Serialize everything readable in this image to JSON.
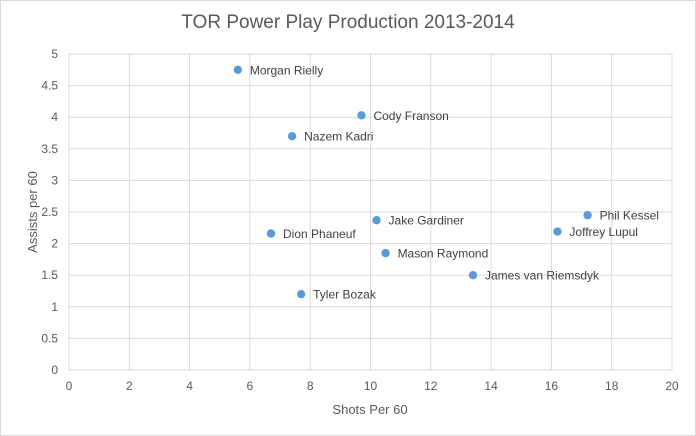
{
  "chart_data": {
    "type": "scatter",
    "title": "TOR Power Play Production 2013-2014",
    "xlabel": "Shots Per 60",
    "ylabel": "Assists per 60",
    "xlim": [
      0,
      20
    ],
    "ylim": [
      0,
      5
    ],
    "xticks": [
      "0",
      "2",
      "4",
      "6",
      "8",
      "10",
      "12",
      "14",
      "16",
      "18",
      "20"
    ],
    "yticks": [
      "0",
      "0.5",
      "1",
      "1.5",
      "2",
      "2.5",
      "3",
      "3.5",
      "4",
      "4.5",
      "5"
    ],
    "grid": true,
    "legend": "none",
    "marker_color": "#5b9bd5",
    "points": [
      {
        "label": "Morgan Rielly",
        "x": 5.6,
        "y": 4.75
      },
      {
        "label": "Cody Franson",
        "x": 9.7,
        "y": 4.03
      },
      {
        "label": "Nazem Kadri",
        "x": 7.4,
        "y": 3.7
      },
      {
        "label": "Jake Gardiner",
        "x": 10.2,
        "y": 2.37
      },
      {
        "label": "Dion Phaneuf",
        "x": 6.7,
        "y": 2.16
      },
      {
        "label": "Mason Raymond",
        "x": 10.5,
        "y": 1.85
      },
      {
        "label": "Tyler Bozak",
        "x": 7.7,
        "y": 1.2
      },
      {
        "label": "James van Riemsdyk",
        "x": 13.4,
        "y": 1.5
      },
      {
        "label": "Phil Kessel",
        "x": 17.2,
        "y": 2.45
      },
      {
        "label": "Joffrey Lupul",
        "x": 16.2,
        "y": 2.19
      }
    ]
  }
}
